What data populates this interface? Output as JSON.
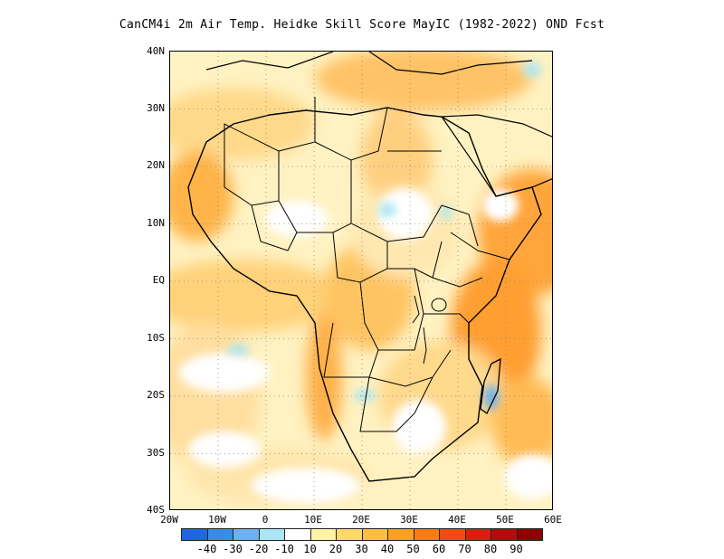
{
  "title": "CanCM4i 2m Air Temp. Heidke Skill Score MayIC (1982-2022) OND Fcst",
  "map": {
    "lat_labels": [
      "40N",
      "30N",
      "20N",
      "10N",
      "EQ",
      "10S",
      "20S",
      "30S",
      "40S"
    ],
    "lon_labels": [
      "20W",
      "10W",
      "0",
      "10E",
      "20E",
      "30E",
      "40E",
      "50E",
      "60E"
    ],
    "lat_range": [
      -40,
      40
    ],
    "lon_range": [
      -20,
      60
    ],
    "grid": "dotted"
  },
  "colorbar": {
    "labels": [
      "-40",
      "-30",
      "-20",
      "-10",
      "10",
      "20",
      "30",
      "40",
      "50",
      "60",
      "70",
      "80",
      "90"
    ],
    "colors": [
      "#1f66e0",
      "#3a8ae8",
      "#6fb0f0",
      "#a8e6f4",
      "#ffffff",
      "#fff3a8",
      "#ffd966",
      "#ffbe3c",
      "#ffa01e",
      "#ff7a10",
      "#f24a10",
      "#d81e10",
      "#b40c0c",
      "#900000"
    ]
  }
}
